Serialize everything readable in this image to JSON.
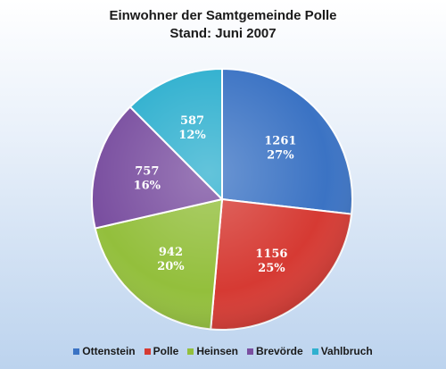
{
  "chart_data": {
    "type": "pie",
    "title": "Einwohner der Samtgemeinde Polle",
    "subtitle": "Stand: Juni 2007",
    "legend_position": "bottom",
    "slices": [
      {
        "name": "Ottenstein",
        "value": 1261,
        "percent": "27%",
        "color": "#3b73c4"
      },
      {
        "name": "Polle",
        "value": 1156,
        "percent": "25%",
        "color": "#d63a33"
      },
      {
        "name": "Heinsen",
        "value": 942,
        "percent": "20%",
        "color": "#93bf3c"
      },
      {
        "name": "Brevörde",
        "value": 757,
        "percent": "16%",
        "color": "#7a4fa0"
      },
      {
        "name": "Vahlbruch",
        "value": 587,
        "percent": "12%",
        "color": "#2fb0cf"
      }
    ]
  }
}
